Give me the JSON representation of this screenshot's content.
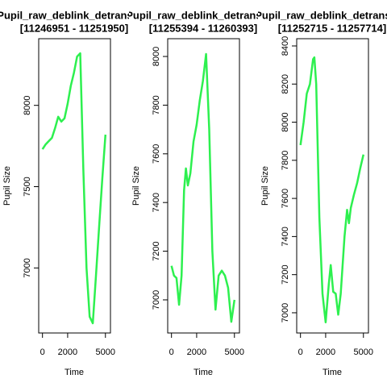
{
  "chart_data": [
    {
      "type": "line",
      "title": "Pupil_raw_deblink_detransient",
      "subtitle": "[11246951 - 11251950]",
      "xlabel": "Time",
      "ylabel": "Pupil Size",
      "color": "#2df04f",
      "x": [
        0,
        250,
        500,
        750,
        1000,
        1250,
        1500,
        1750,
        2000,
        2250,
        2500,
        2750,
        3000,
        3250,
        3500,
        3750,
        4000,
        4250,
        4500,
        4750,
        5000
      ],
      "values": [
        7730,
        7760,
        7780,
        7800,
        7860,
        7930,
        7900,
        7920,
        8010,
        8120,
        8200,
        8300,
        8320,
        7600,
        7000,
        6700,
        6660,
        6950,
        7250,
        7550,
        7820
      ],
      "xlim": [
        -300,
        5400
      ],
      "xticks": [
        0,
        2000,
        5000
      ],
      "ylim": [
        6600,
        8410
      ],
      "yticks": [
        7000,
        7500,
        8000
      ]
    },
    {
      "type": "line",
      "title": "Pupil_raw_deblink_detransient",
      "subtitle": "[11255394 - 11260393]",
      "xlabel": "Time",
      "ylabel": "Pupil Size",
      "color": "#2df04f",
      "x": [
        0,
        200,
        400,
        600,
        800,
        1000,
        1150,
        1300,
        1500,
        1750,
        2000,
        2250,
        2500,
        2750,
        3000,
        3250,
        3500,
        3750,
        4000,
        4250,
        4500,
        4750,
        5000
      ],
      "values": [
        7140,
        7100,
        7090,
        6980,
        7100,
        7450,
        7540,
        7470,
        7520,
        7650,
        7720,
        7820,
        7900,
        8010,
        7700,
        7200,
        6960,
        7100,
        7120,
        7100,
        7050,
        6910,
        7000
      ],
      "xlim": [
        -300,
        5400
      ],
      "xticks": [
        0,
        2000,
        5000
      ],
      "ylim": [
        6864,
        8073
      ],
      "yticks": [
        7000,
        7200,
        7400,
        7600,
        7800,
        8000
      ]
    },
    {
      "type": "line",
      "title": "Pupil_raw_deblink_detransient",
      "subtitle": "[11252715 - 11257714]",
      "xlabel": "Time",
      "ylabel": "Pupil Size",
      "color": "#2df04f",
      "x": [
        0,
        250,
        500,
        750,
        1000,
        1100,
        1250,
        1500,
        1750,
        2000,
        2250,
        2400,
        2600,
        2800,
        3000,
        3200,
        3500,
        3700,
        3850,
        4000,
        4250,
        4500,
        4750,
        5000
      ],
      "values": [
        7880,
        8000,
        8150,
        8200,
        8330,
        8340,
        8200,
        7500,
        7100,
        6950,
        7150,
        7250,
        7110,
        7100,
        6990,
        7100,
        7400,
        7540,
        7470,
        7550,
        7620,
        7680,
        7760,
        7830
      ],
      "xlim": [
        -300,
        5400
      ],
      "xticks": [
        0,
        2000,
        5000
      ],
      "ylim": [
        6894,
        8438
      ],
      "yticks": [
        7000,
        7200,
        7400,
        7600,
        7800,
        8000,
        8200,
        8400
      ]
    }
  ]
}
